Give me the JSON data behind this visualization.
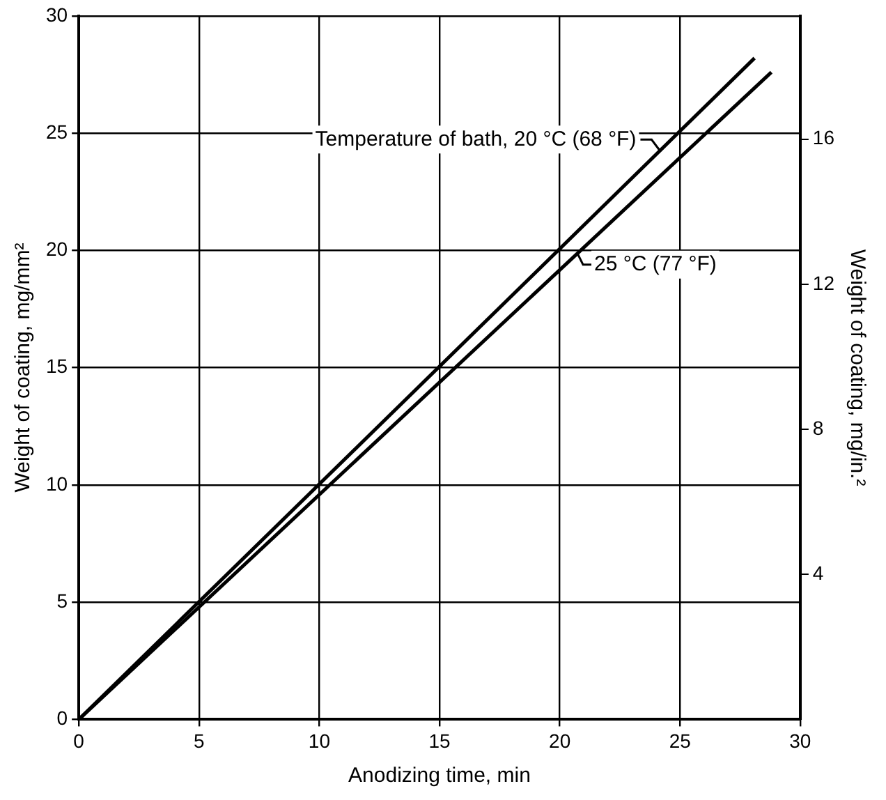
{
  "chart_data": {
    "type": "line",
    "xlabel": "Anodizing time, min",
    "ylabel": "Weight of coating, mg/mm²",
    "y2label": "Weight of coating, mg/in.²",
    "xlim": [
      0,
      30
    ],
    "xticks": [
      0,
      5,
      10,
      15,
      20,
      25,
      30
    ],
    "ylim": [
      0,
      30
    ],
    "yticks": [
      0,
      5,
      10,
      15,
      20,
      25,
      30
    ],
    "y2lim": [
      0,
      19.4
    ],
    "y2ticks": [
      4,
      8,
      12,
      16
    ],
    "grid": true,
    "marker": "none",
    "line_style": "solid",
    "series": [
      {
        "name": "Temperature of bath, 20 °C (68 °F)",
        "color": "#000000",
        "x": [
          0,
          28.1
        ],
        "values": [
          0,
          28.2
        ]
      },
      {
        "name": "25 °C (77 °F)",
        "color": "#000000",
        "x": [
          0,
          28.8
        ],
        "values": [
          0,
          27.6
        ]
      }
    ]
  }
}
